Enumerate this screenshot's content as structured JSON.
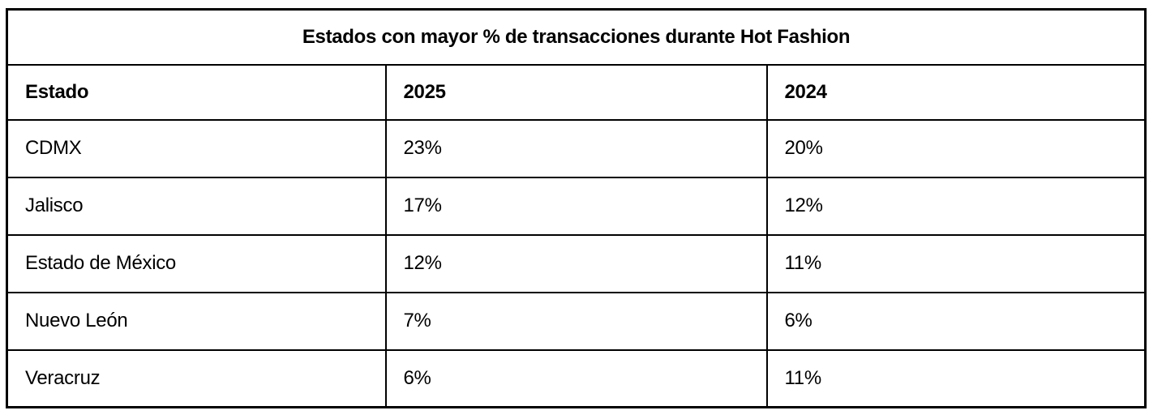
{
  "page": {
    "background_color": "#ffffff",
    "border_color": "#000000",
    "text_color": "#000000"
  },
  "table": {
    "title": "Estados con mayor % de transacciones durante Hot Fashion",
    "columns": [
      "Estado",
      "2025",
      "2024"
    ],
    "rows": [
      [
        "CDMX",
        "23%",
        "20%"
      ],
      [
        "Jalisco",
        "17%",
        "12%"
      ],
      [
        "Estado de México",
        "12%",
        "11%"
      ],
      [
        "Nuevo León",
        "7%",
        "6%"
      ],
      [
        "Veracruz",
        "6%",
        "11%"
      ]
    ]
  },
  "chart_data": {
    "type": "table",
    "title": "Estados con mayor % de transacciones durante Hot Fashion",
    "columns": [
      "Estado",
      "2025",
      "2024"
    ],
    "categories": [
      "CDMX",
      "Jalisco",
      "Estado de México",
      "Nuevo León",
      "Veracruz"
    ],
    "series": [
      {
        "name": "2025",
        "values": [
          23,
          17,
          12,
          7,
          6
        ]
      },
      {
        "name": "2024",
        "values": [
          20,
          12,
          11,
          6,
          11
        ]
      }
    ],
    "unit": "%"
  }
}
